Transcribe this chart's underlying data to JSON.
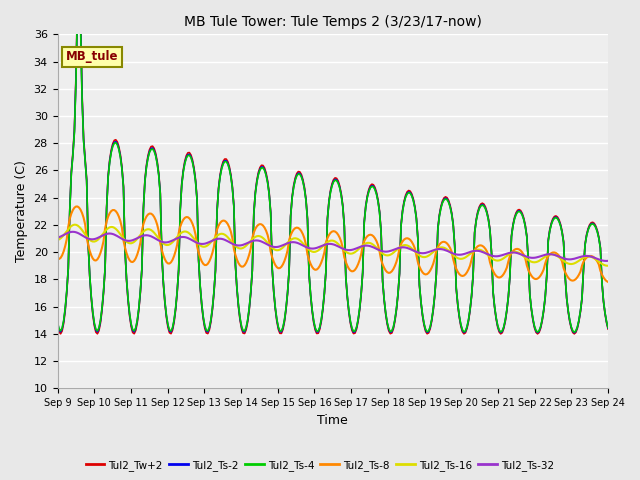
{
  "title": "MB Tule Tower: Tule Temps 2 (3/23/17-now)",
  "xlabel": "Time",
  "ylabel": "Temperature (C)",
  "ylim": [
    10,
    36
  ],
  "yticks": [
    10,
    12,
    14,
    16,
    18,
    20,
    22,
    24,
    26,
    28,
    30,
    32,
    34,
    36
  ],
  "x_tick_days": [
    9,
    10,
    11,
    12,
    13,
    14,
    15,
    16,
    17,
    18,
    19,
    20,
    21,
    22,
    23,
    24
  ],
  "legend_label": "MB_tule",
  "series": [
    {
      "name": "Tul2_Tw+2",
      "color": "#dd0000"
    },
    {
      "name": "Tul2_Ts-2",
      "color": "#0000ee"
    },
    {
      "name": "Tul2_Ts-4",
      "color": "#00cc00"
    },
    {
      "name": "Tul2_Ts-8",
      "color": "#ff8800"
    },
    {
      "name": "Tul2_Ts-16",
      "color": "#dddd00"
    },
    {
      "name": "Tul2_Ts-32",
      "color": "#9933cc"
    }
  ],
  "bg_color": "#e8e8e8",
  "plot_bg": "#eeeeee",
  "station_box_color": "#ffffaa",
  "station_box_edge": "#888800",
  "figsize": [
    6.4,
    4.8
  ],
  "dpi": 100
}
